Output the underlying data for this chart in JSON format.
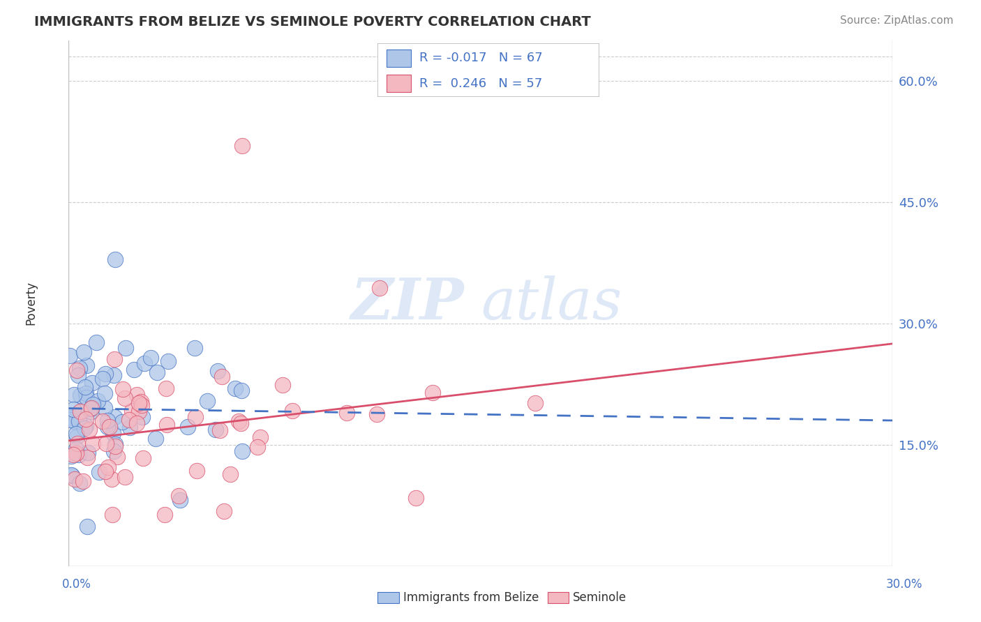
{
  "title": "IMMIGRANTS FROM BELIZE VS SEMINOLE POVERTY CORRELATION CHART",
  "source": "Source: ZipAtlas.com",
  "ylabel": "Poverty",
  "right_ytick_vals": [
    0.15,
    0.3,
    0.45,
    0.6
  ],
  "legend_blue_r": "-0.017",
  "legend_blue_n": "67",
  "legend_pink_r": "0.246",
  "legend_pink_n": "57",
  "blue_color": "#aec6e8",
  "pink_color": "#f4b8c1",
  "blue_line_color": "#4472c4",
  "pink_line_color": "#d94f6b",
  "watermark_zip": "ZIP",
  "watermark_atlas": "atlas",
  "xlim": [
    0.0,
    0.3
  ],
  "ylim": [
    0.0,
    0.65
  ],
  "blue_trend_x": [
    0.0,
    0.3
  ],
  "blue_trend_y": [
    0.195,
    0.18
  ],
  "pink_trend_x": [
    0.0,
    0.3
  ],
  "pink_trend_y": [
    0.155,
    0.275
  ],
  "background_color": "#ffffff",
  "grid_color": "#cccccc",
  "border_color": "#c0c0c0"
}
